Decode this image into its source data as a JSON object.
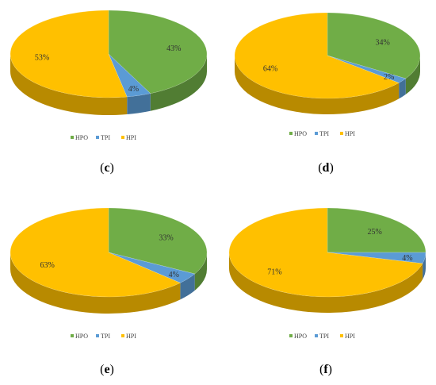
{
  "colors": {
    "HPO": "#70ad47",
    "TPI": "#5b9bd5",
    "HPI": "#ffc000"
  },
  "chart_data": [
    {
      "type": "pie",
      "panel_label": "c",
      "categories": [
        "HPO",
        "TPI",
        "HPI"
      ],
      "values": [
        43,
        4,
        53
      ],
      "data_labels": [
        "43%",
        "4%",
        "53%"
      ],
      "legend": [
        "HPO",
        "TPI",
        "HPI"
      ],
      "legend_position": "bottom",
      "style": "3d"
    },
    {
      "type": "pie",
      "panel_label": "d",
      "categories": [
        "HPO",
        "TPI",
        "HPI"
      ],
      "values": [
        34,
        2,
        64
      ],
      "data_labels": [
        "34%",
        "2%",
        "64%"
      ],
      "legend": [
        "HPO",
        "TPI",
        "HPI"
      ],
      "legend_position": "bottom",
      "style": "3d"
    },
    {
      "type": "pie",
      "panel_label": "e",
      "categories": [
        "HPO",
        "TPI",
        "HPI"
      ],
      "values": [
        33,
        4,
        63
      ],
      "data_labels": [
        "33%",
        "4%",
        "63%"
      ],
      "legend": [
        "HPO",
        "TPI",
        "HPI"
      ],
      "legend_position": "bottom",
      "style": "3d"
    },
    {
      "type": "pie",
      "panel_label": "f",
      "categories": [
        "HPO",
        "TPI",
        "HPI"
      ],
      "values": [
        25,
        4,
        71
      ],
      "data_labels": [
        "25%",
        "4%",
        "71%"
      ],
      "legend": [
        "HPO",
        "TPI",
        "HPI"
      ],
      "legend_position": "bottom",
      "style": "3d"
    }
  ],
  "captions": {
    "c": {
      "open": "(",
      "letter": "c",
      "close": ")"
    },
    "d": {
      "open": "(",
      "letter": "d",
      "close": ")"
    },
    "e": {
      "open": "(",
      "letter": "e",
      "close": ")"
    },
    "f": {
      "open": "(",
      "letter": "f",
      "close": ")"
    }
  }
}
